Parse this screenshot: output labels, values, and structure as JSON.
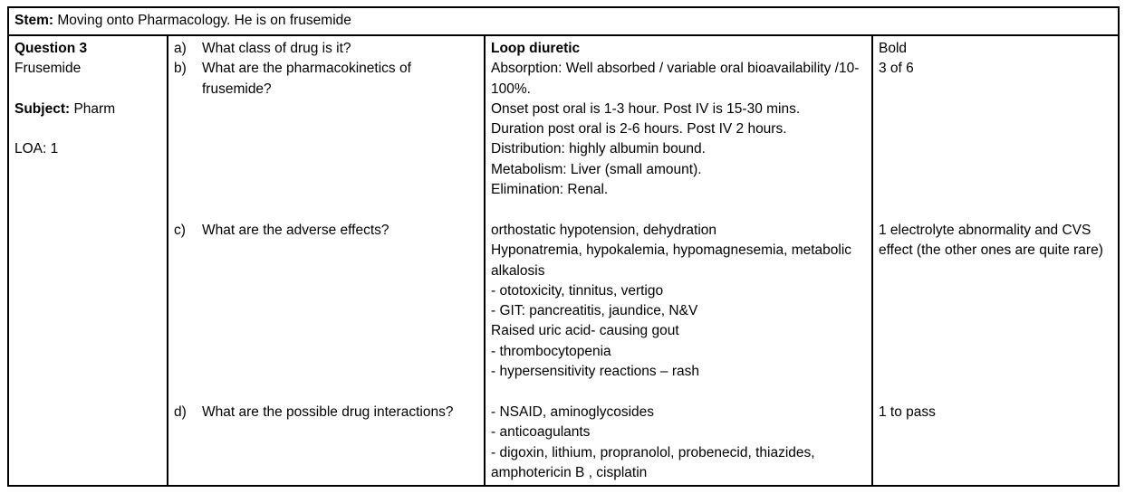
{
  "stem": {
    "label": "Stem:",
    "text": " Moving onto Pharmacology.  He is on frusemide"
  },
  "question_info": {
    "title": "Question 3",
    "drug": "Frusemide",
    "subject_label": "Subject:",
    "subject_value": " Pharm",
    "loa": "LOA: 1"
  },
  "sections": [
    {
      "questions": [
        {
          "letter": "a)",
          "text": "What class of drug is it?"
        },
        {
          "letter": "b)",
          "text": "What are the pharmacokinetics of frusemide?"
        }
      ],
      "answer_title": "Loop diuretic",
      "answer_lines": [
        "Absorption: Well absorbed / variable oral bioavailability /10-100%.",
        "Onset post oral is 1-3 hour. Post IV is 15-30 mins.",
        "Duration post oral is 2-6 hours. Post IV 2 hours.",
        "Distribution: highly albumin bound.",
        "Metabolism: Liver (small amount).",
        "Elimination: Renal."
      ],
      "marks_lines": [
        "Bold",
        "3 of 6"
      ]
    },
    {
      "questions": [
        {
          "letter": "c)",
          "text": "What are the adverse effects?"
        }
      ],
      "answer_title": "",
      "answer_lines": [
        "orthostatic hypotension, dehydration",
        "Hyponatremia, hypokalemia, hypomagnesemia, metabolic alkalosis",
        "- ototoxicity, tinnitus, vertigo",
        "- GIT: pancreatitis, jaundice, N&V",
        "Raised uric acid- causing gout",
        "- thrombocytopenia",
        "- hypersensitivity reactions – rash"
      ],
      "marks_lines": [
        "1 electrolyte abnormality and CVS effect (the other ones are quite rare)"
      ]
    },
    {
      "questions": [
        {
          "letter": "d)",
          "text": "What are the possible drug interactions?"
        }
      ],
      "answer_title": "",
      "answer_lines": [
        "- NSAID, aminoglycosides",
        "- anticoagulants",
        "- digoxin, lithium, propranolol, probenecid, thiazides, amphotericin B , cisplatin"
      ],
      "marks_lines": [
        "1 to pass"
      ]
    }
  ]
}
